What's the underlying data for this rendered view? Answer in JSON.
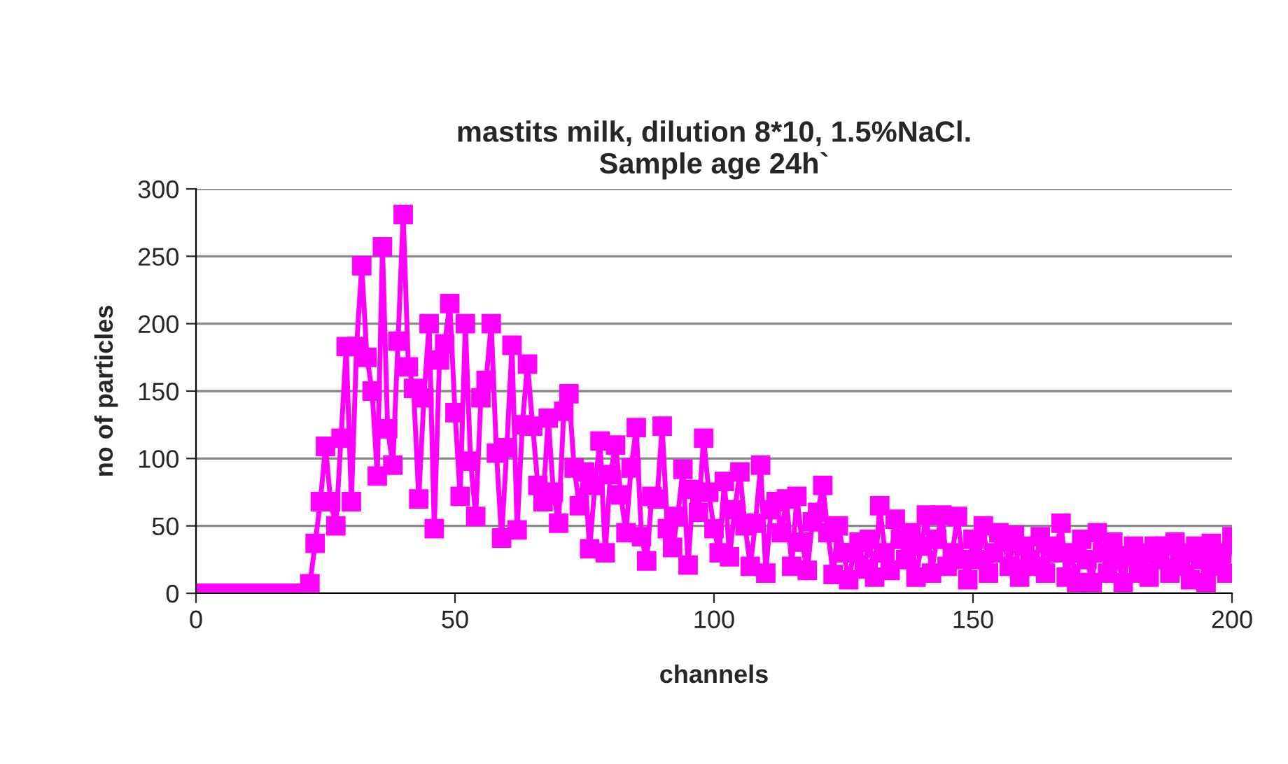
{
  "chart_data": {
    "type": "line",
    "title": "mastits milk, dilution 8*10, 1.5%NaCl.\nSample age 24h`",
    "xlabel": "channels",
    "ylabel": "no of particles",
    "x": [
      0,
      1,
      2,
      3,
      4,
      5,
      6,
      7,
      8,
      9,
      10,
      11,
      12,
      13,
      14,
      15,
      16,
      17,
      18,
      19,
      20,
      21,
      22,
      23,
      24,
      25,
      26,
      27,
      28,
      29,
      30,
      31,
      32,
      33,
      34,
      35,
      36,
      37,
      38,
      39,
      40,
      41,
      42,
      43,
      44,
      45,
      46,
      47,
      48,
      49,
      50,
      51,
      52,
      53,
      54,
      55,
      56,
      57,
      58,
      59,
      60,
      61,
      62,
      63,
      64,
      65,
      66,
      67,
      68,
      69,
      70,
      71,
      72,
      73,
      74,
      75,
      76,
      77,
      78,
      79,
      80,
      81,
      82,
      83,
      84,
      85,
      86,
      87,
      88,
      89,
      90,
      91,
      92,
      93,
      94,
      95,
      96,
      97,
      98,
      99,
      100,
      101,
      102,
      103,
      104,
      105,
      106,
      107,
      108,
      109,
      110,
      111,
      112,
      113,
      114,
      115,
      116,
      117,
      118,
      119,
      120,
      121,
      122,
      123,
      124,
      125,
      126,
      127,
      128,
      129,
      130,
      131,
      132,
      133,
      134,
      135,
      136,
      137,
      138,
      139,
      140,
      141,
      142,
      143,
      144,
      145,
      146,
      147,
      148,
      149,
      150,
      151,
      152,
      153,
      154,
      155,
      156,
      157,
      158,
      159,
      160,
      161,
      162,
      163,
      164,
      165,
      166,
      167,
      168,
      169,
      170,
      171,
      172,
      173,
      174,
      175,
      176,
      177,
      178,
      179,
      180,
      181,
      182,
      183,
      184,
      185,
      186,
      187,
      188,
      189,
      190,
      191,
      192,
      193,
      194,
      195,
      196,
      197,
      198,
      199,
      200
    ],
    "series": [
      {
        "color": "#ff00ff",
        "values": [
          0,
          0,
          0,
          0,
          0,
          0,
          0,
          0,
          0,
          0,
          0,
          0,
          0,
          0,
          0,
          0,
          0,
          0,
          0,
          0,
          0,
          0,
          7,
          37,
          68,
          109,
          68,
          50,
          115,
          183,
          68,
          183,
          243,
          175,
          150,
          87,
          257,
          122,
          95,
          187,
          281,
          168,
          152,
          70,
          145,
          200,
          48,
          173,
          185,
          215,
          134,
          72,
          200,
          98,
          57,
          145,
          158,
          200,
          104,
          41,
          108,
          184,
          47,
          125,
          170,
          124,
          80,
          68,
          130,
          75,
          52,
          135,
          148,
          93,
          65,
          90,
          33,
          80,
          113,
          30,
          88,
          110,
          73,
          45,
          93,
          123,
          42,
          24,
          72,
          70,
          124,
          48,
          34,
          57,
          92,
          21,
          77,
          60,
          115,
          75,
          48,
          30,
          83,
          27,
          62,
          90,
          50,
          20,
          52,
          95,
          15,
          62,
          68,
          45,
          70,
          20,
          72,
          38,
          17,
          53,
          60,
          80,
          45,
          14,
          50,
          30,
          10,
          30,
          38,
          18,
          40,
          12,
          65,
          30,
          17,
          55,
          40,
          25,
          45,
          12,
          35,
          58,
          15,
          40,
          58,
          20,
          30,
          57,
          25,
          10,
          40,
          25,
          50,
          15,
          30,
          45,
          38,
          20,
          43,
          12,
          35,
          25,
          20,
          42,
          15,
          35,
          30,
          52,
          12,
          30,
          8,
          40,
          25,
          8,
          45,
          30,
          15,
          38,
          25,
          8,
          28,
          35,
          15,
          30,
          12,
          35,
          25,
          35,
          15,
          38,
          20,
          30,
          10,
          35,
          25,
          8,
          37,
          20,
          30,
          15,
          42
        ]
      }
    ],
    "xlim": [
      0,
      200
    ],
    "xticks": [
      0,
      50,
      100,
      150,
      200
    ],
    "ylim": [
      0,
      300
    ],
    "yticks": [
      0,
      50,
      100,
      150,
      200,
      250,
      300
    ],
    "grid": "y",
    "marker": "square",
    "line_style": "solid",
    "legend": false
  }
}
